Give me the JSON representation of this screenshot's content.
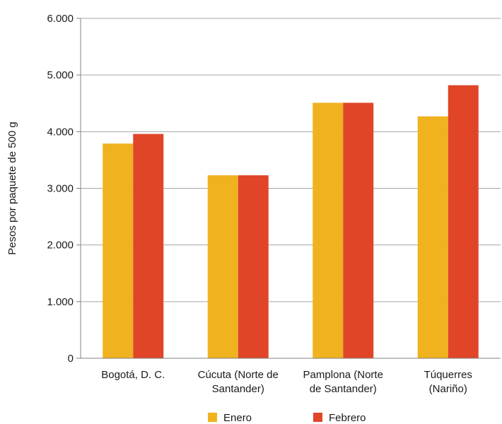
{
  "chart_data": {
    "type": "bar",
    "title": "",
    "xlabel": "",
    "ylabel": "Pesos por paquete de 500 g",
    "ylim": [
      0,
      6000
    ],
    "yticks": [
      0,
      1000,
      2000,
      3000,
      4000,
      5000,
      6000
    ],
    "ytick_labels": [
      "0",
      "1.000",
      "2.000",
      "3.000",
      "4.000",
      "5.000",
      "6.000"
    ],
    "categories": [
      [
        "Bogotá, D. C."
      ],
      [
        "Cúcuta (Norte de",
        "Santander)"
      ],
      [
        "Pamplona (Norte",
        "de Santander)"
      ],
      [
        "Túquerres",
        "(Nariño)"
      ]
    ],
    "series": [
      {
        "name": "Enero",
        "color": "#F0B21F",
        "values": [
          3790,
          3230,
          4510,
          4270
        ]
      },
      {
        "name": "Febrero",
        "color": "#E04528",
        "values": [
          3960,
          3230,
          4510,
          4820
        ]
      }
    ],
    "grid": true,
    "legend_position": "bottom"
  }
}
